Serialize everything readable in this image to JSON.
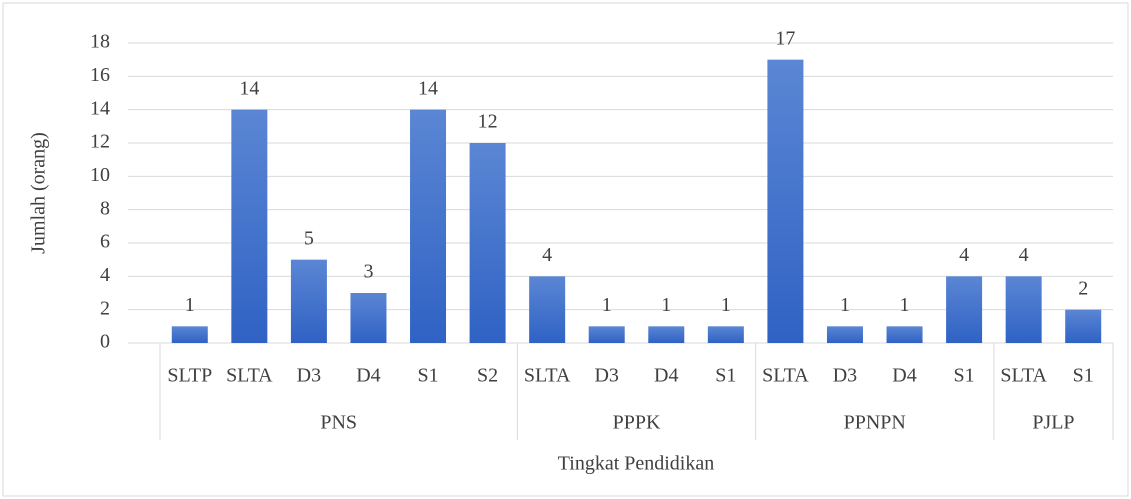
{
  "chart_data": {
    "type": "bar",
    "y_label": "Jumlah (orang)",
    "x_label": "Tingkat Pendidikan",
    "color": "#3f6fcc",
    "groups": [
      {
        "name": "PNS",
        "categories": [
          "SLTP",
          "SLTA",
          "D3",
          "D4",
          "S1",
          "S2"
        ],
        "values": [
          1,
          14,
          5,
          3,
          14,
          12
        ]
      },
      {
        "name": "PPPK",
        "categories": [
          "SLTA",
          "D3",
          "D4",
          "S1"
        ],
        "values": [
          4,
          1,
          1,
          1
        ]
      },
      {
        "name": "PPNPN",
        "categories": [
          "SLTA",
          "D3",
          "D4",
          "S1"
        ],
        "values": [
          17,
          1,
          1,
          4
        ]
      },
      {
        "name": "PJLP",
        "categories": [
          "SLTA",
          "S1"
        ],
        "values": [
          4,
          2
        ]
      }
    ],
    "ylim": [
      0,
      18
    ],
    "yticks": [
      0,
      2,
      4,
      6,
      8,
      10,
      12,
      14,
      16,
      18
    ],
    "grid": true
  }
}
